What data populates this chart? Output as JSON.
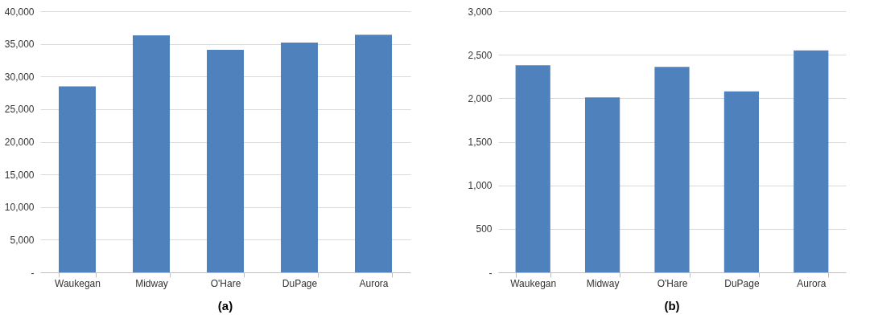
{
  "chart_data": [
    {
      "type": "bar",
      "title": "(a)",
      "categories": [
        "Waukegan",
        "Midway",
        "O'Hare",
        "DuPage",
        "Aurora"
      ],
      "values": [
        28500,
        36300,
        34100,
        35200,
        36400
      ],
      "color": "#4f81bd",
      "ylim": [
        0,
        40000
      ],
      "yticks": [
        {
          "value": 0,
          "label": "-"
        },
        {
          "value": 5000,
          "label": "5,000"
        },
        {
          "value": 10000,
          "label": "10,000"
        },
        {
          "value": 15000,
          "label": "15,000"
        },
        {
          "value": 20000,
          "label": "20,000"
        },
        {
          "value": 25000,
          "label": "25,000"
        },
        {
          "value": 30000,
          "label": "30,000"
        },
        {
          "value": 35000,
          "label": "35,000"
        },
        {
          "value": 40000,
          "label": "40,000"
        }
      ],
      "grid": "y"
    },
    {
      "type": "bar",
      "title": "(b)",
      "categories": [
        "Waukegan",
        "Midway",
        "O'Hare",
        "DuPage",
        "Aurora"
      ],
      "values": [
        2380,
        2010,
        2360,
        2080,
        2550
      ],
      "color": "#4f81bd",
      "ylim": [
        0,
        3000
      ],
      "yticks": [
        {
          "value": 0,
          "label": "-"
        },
        {
          "value": 500,
          "label": "500"
        },
        {
          "value": 1000,
          "label": "1,000"
        },
        {
          "value": 1500,
          "label": "1,500"
        },
        {
          "value": 2000,
          "label": "2,000"
        },
        {
          "value": 2500,
          "label": "2,500"
        },
        {
          "value": 3000,
          "label": "3,000"
        }
      ],
      "grid": "y"
    }
  ]
}
